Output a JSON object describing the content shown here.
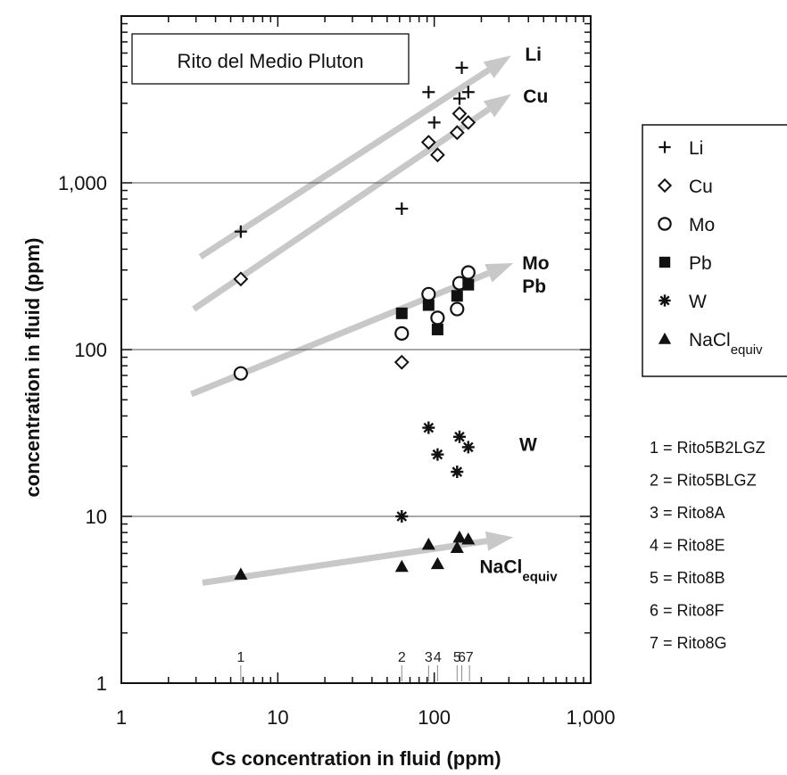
{
  "chart_data": {
    "type": "scatter",
    "title": "Rito del Medio Pluton",
    "xlabel": "Cs concentration in fluid (ppm)",
    "ylabel": "concentration in fluid (ppm)",
    "xscale": "log",
    "yscale": "log",
    "xlim": [
      1,
      1000
    ],
    "ylim": [
      1,
      10000
    ],
    "x_ticks": [
      {
        "value": 1,
        "label": "1"
      },
      {
        "value": 10,
        "label": "10"
      },
      {
        "value": 100,
        "label": "100"
      },
      {
        "value": 1000,
        "label": "1,000"
      }
    ],
    "y_ticks": [
      {
        "value": 1,
        "label": "1"
      },
      {
        "value": 10,
        "label": "10"
      },
      {
        "value": 100,
        "label": "100"
      },
      {
        "value": 1000,
        "label": "1,000"
      }
    ],
    "gridlines_y": [
      10,
      100,
      1000
    ],
    "legend_position": "right",
    "series": [
      {
        "name": "Li",
        "marker": "plus",
        "label": "Li",
        "points": [
          [
            5.8,
            510
          ],
          [
            62,
            700
          ],
          [
            92,
            3500
          ],
          [
            100,
            2300
          ],
          [
            145,
            3200
          ],
          [
            150,
            4900
          ],
          [
            165,
            3500
          ]
        ]
      },
      {
        "name": "Cu",
        "marker": "diamond",
        "label": "Cu",
        "points": [
          [
            5.8,
            265
          ],
          [
            62,
            84
          ],
          [
            92,
            1750
          ],
          [
            105,
            1470
          ],
          [
            140,
            2000
          ],
          [
            145,
            2600
          ],
          [
            165,
            2300
          ]
        ]
      },
      {
        "name": "Mo",
        "marker": "circle",
        "label": "Mo",
        "points": [
          [
            5.8,
            72
          ],
          [
            62,
            125
          ],
          [
            92,
            215
          ],
          [
            105,
            155
          ],
          [
            140,
            175
          ],
          [
            145,
            250
          ],
          [
            165,
            290
          ]
        ]
      },
      {
        "name": "Pb",
        "marker": "square",
        "label": "Pb",
        "points": [
          [
            62,
            165
          ],
          [
            92,
            185
          ],
          [
            105,
            132
          ],
          [
            140,
            210
          ],
          [
            165,
            245
          ]
        ]
      },
      {
        "name": "W",
        "marker": "star",
        "label": "W",
        "points": [
          [
            62,
            10
          ],
          [
            92,
            34
          ],
          [
            105,
            23.5
          ],
          [
            140,
            18.5
          ],
          [
            145,
            30
          ],
          [
            165,
            26
          ]
        ]
      },
      {
        "name": "NaClequiv",
        "marker": "triangle",
        "label": "NaCl",
        "label_sub": "equiv",
        "points": [
          [
            5.8,
            4.5
          ],
          [
            62,
            5
          ],
          [
            92,
            6.8
          ],
          [
            105,
            5.2
          ],
          [
            140,
            6.5
          ],
          [
            145,
            7.5
          ],
          [
            165,
            7.3
          ]
        ]
      }
    ],
    "trend_arrows": [
      {
        "series": "Li",
        "from": [
          3.2,
          360
        ],
        "to": [
          310,
          5800
        ]
      },
      {
        "series": "Cu",
        "from": [
          2.9,
          175
        ],
        "to": [
          310,
          3400
        ]
      },
      {
        "series": "Mo",
        "from": [
          2.8,
          54
        ],
        "to": [
          320,
          330
        ]
      },
      {
        "series": "NaClequiv",
        "from": [
          3.3,
          4.0
        ],
        "to": [
          320,
          7.5
        ]
      }
    ],
    "series_labels": [
      {
        "text": "Li",
        "at": [
          380,
          5900
        ]
      },
      {
        "text": "Cu",
        "at": [
          370,
          3300
        ]
      },
      {
        "text": "Mo",
        "at": [
          365,
          330
        ]
      },
      {
        "text": "Pb",
        "at": [
          365,
          240
        ]
      },
      {
        "text": "W",
        "at": [
          350,
          27
        ]
      },
      {
        "text": "NaCl",
        "sub": "equiv",
        "at": [
          195,
          5.0
        ]
      }
    ],
    "sample_markers": [
      {
        "n": "1",
        "x": 5.8
      },
      {
        "n": "2",
        "x": 62
      },
      {
        "n": "3",
        "x": 92
      },
      {
        "n": "4",
        "x": 105
      },
      {
        "n": "5",
        "x": 140
      },
      {
        "n": "6",
        "x": 150
      },
      {
        "n": "7",
        "x": 168
      }
    ],
    "sample_key": [
      "1 = Rito5B2LGZ",
      "2 = Rito5BLGZ",
      "3 = Rito8A",
      "4 = Rito8E",
      "5 = Rito8B",
      "6 = Rito8F",
      "7 = Rito8G"
    ],
    "colors": {
      "axis": "#111111",
      "grid": "#555555",
      "arrow": "#c8c8c8",
      "marker": "#111111"
    }
  }
}
